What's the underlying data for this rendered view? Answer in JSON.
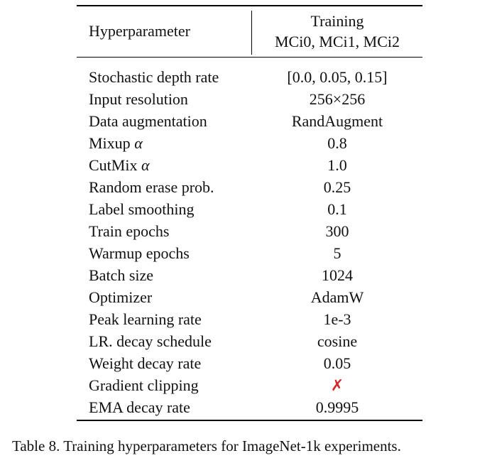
{
  "table": {
    "header": {
      "param": "Hyperparameter",
      "training_line1": "Training",
      "training_line2": "MCi0, MCi1, MCi2"
    },
    "rows": [
      {
        "name": "Stochastic depth rate",
        "value": "[0.0, 0.05, 0.15]"
      },
      {
        "name": "Input resolution",
        "value": "256×256"
      },
      {
        "name": "Data augmentation",
        "value": "RandAugment"
      },
      {
        "name_prefix": "Mixup",
        "name_greek": "α",
        "value": "0.8"
      },
      {
        "name_prefix": "CutMix",
        "name_greek": "α",
        "value": "1.0"
      },
      {
        "name": "Random erase prob.",
        "value": "0.25"
      },
      {
        "name": "Label smoothing",
        "value": "0.1"
      },
      {
        "name": "Train epochs",
        "value": "300"
      },
      {
        "name": "Warmup epochs",
        "value": "5"
      },
      {
        "name": "Batch size",
        "value": "1024"
      },
      {
        "name": "Optimizer",
        "value": "AdamW"
      },
      {
        "name": "Peak learning rate",
        "value": "1e-3"
      },
      {
        "name": "LR. decay schedule",
        "value": "cosine"
      },
      {
        "name": "Weight decay rate",
        "value": "0.05"
      },
      {
        "name": "Gradient clipping",
        "value": "✗"
      },
      {
        "name": "EMA decay rate",
        "value": "0.9995"
      }
    ],
    "cross_color": "#d62728"
  },
  "caption": "Table 8. Training hyperparameters for ImageNet-1k experiments."
}
